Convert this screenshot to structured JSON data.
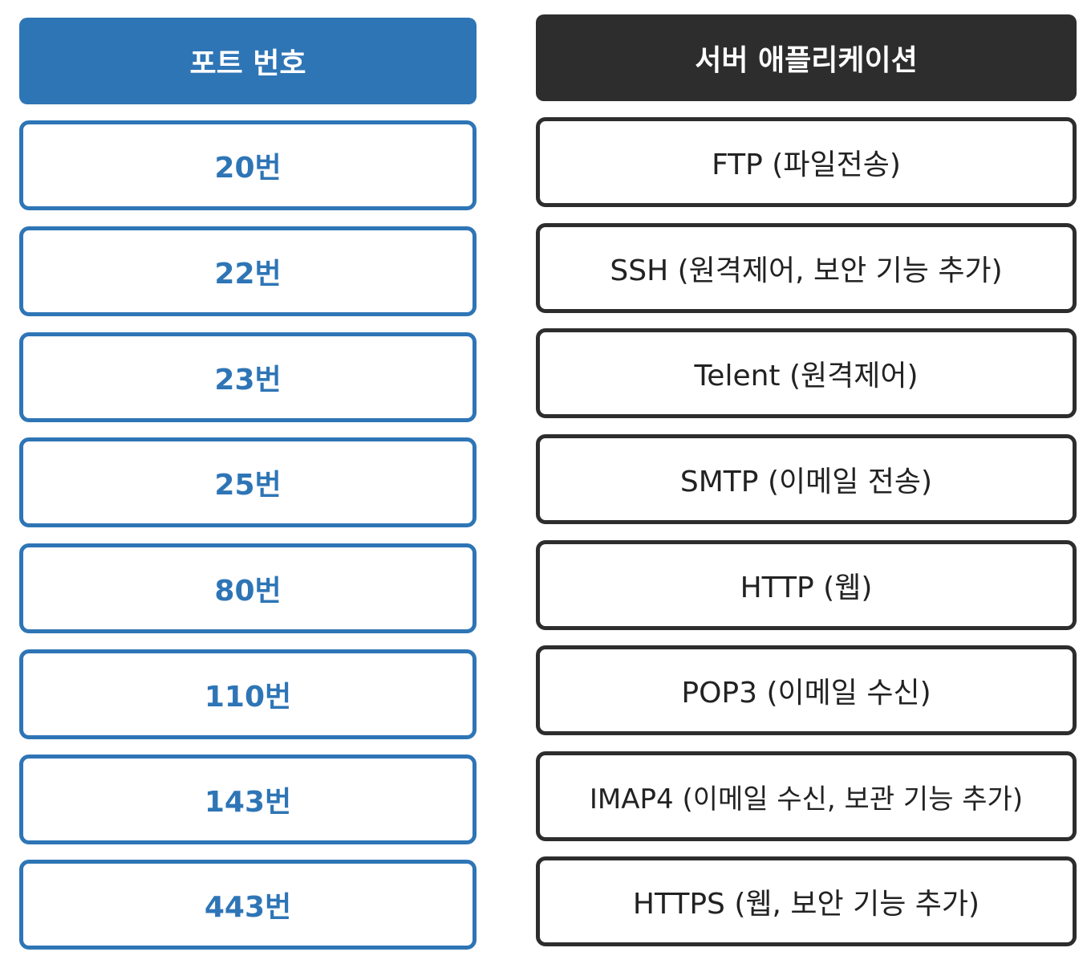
{
  "ports": {
    "header": "포트 번호",
    "items": [
      "20번",
      "22번",
      "23번",
      "25번",
      "80번",
      "110번",
      "143번",
      "443번"
    ]
  },
  "apps": {
    "header": "서버 애플리케이션",
    "items": [
      "FTP (파일전송)",
      "SSH (원격제어, 보안 기능 추가)",
      "Telent (원격제어)",
      "SMTP (이메일 전송)",
      "HTTP (웹)",
      "POP3 (이메일 수신)",
      "IMAP4 (이메일 수신, 보관 기능 추가)",
      "HTTPS (웹, 보안 기능 추가)"
    ]
  },
  "colors": {
    "port_accent": "#2e75b6",
    "app_accent": "#2d2d2d"
  }
}
